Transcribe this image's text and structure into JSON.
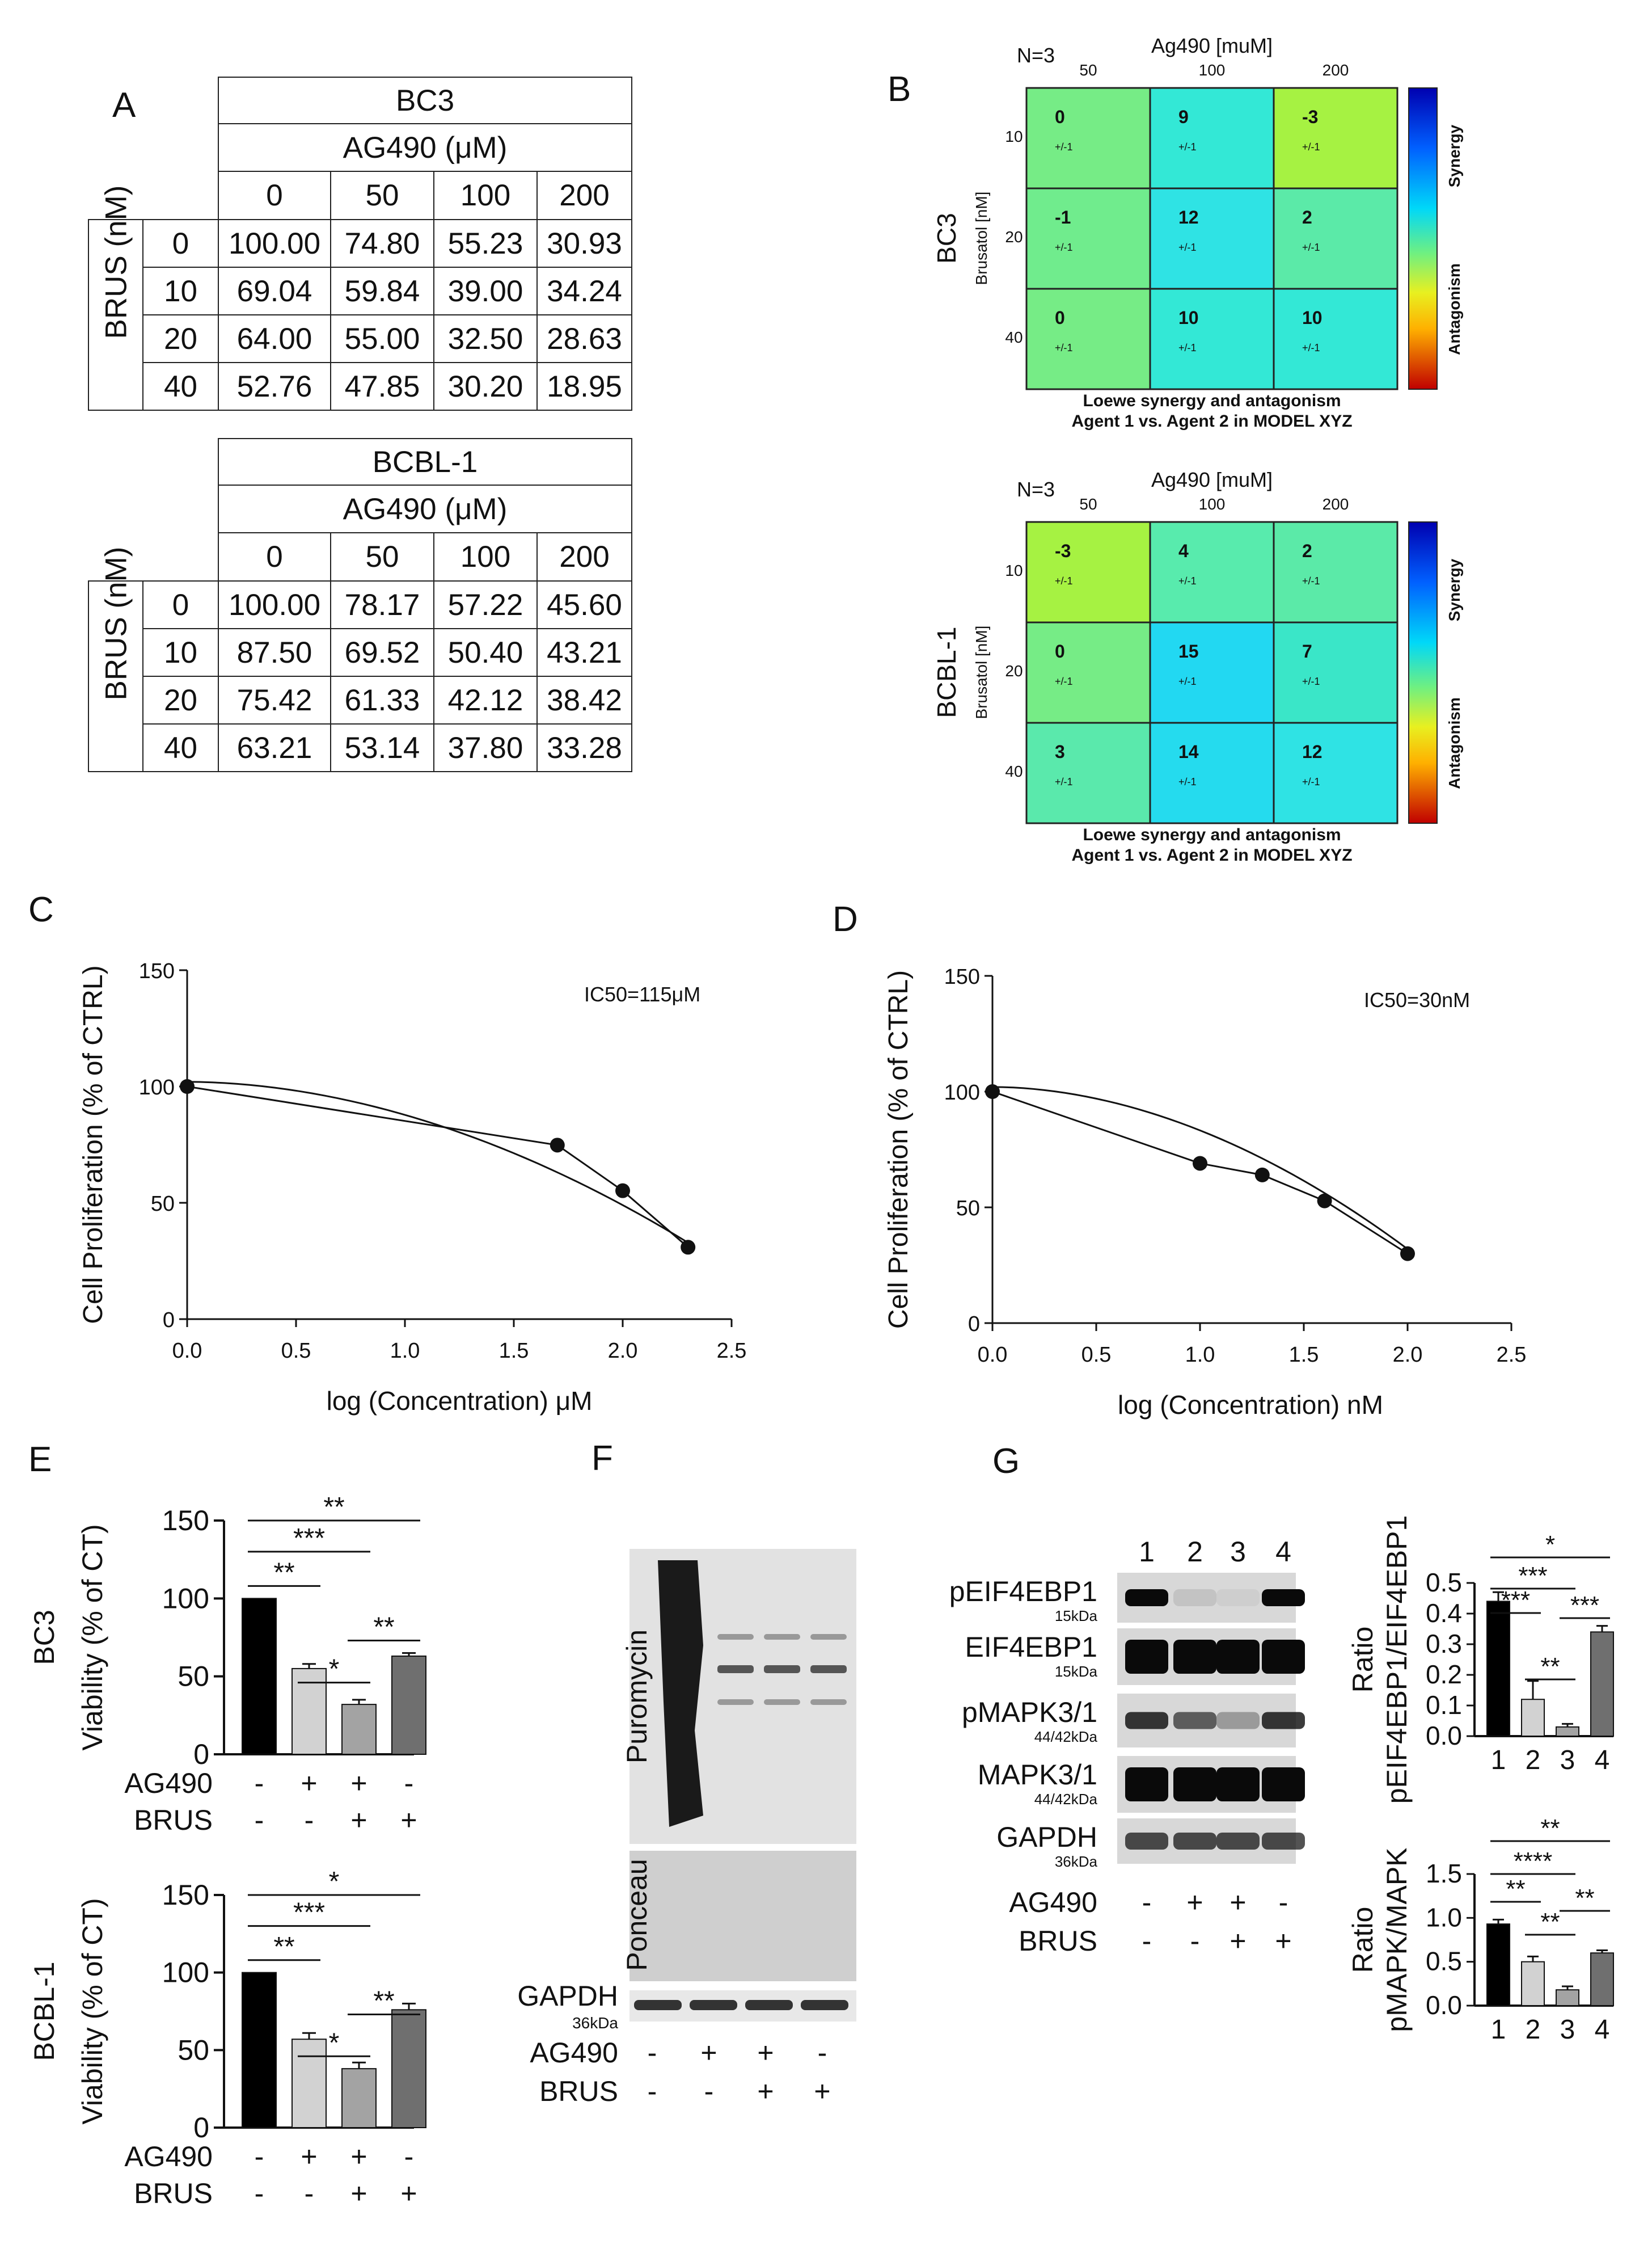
{
  "panels": {
    "A": "A",
    "B": "B",
    "C": "C",
    "D": "D",
    "E": "E",
    "F": "F",
    "G": "G"
  },
  "panel_A": {
    "tables": [
      {
        "cell_line": "BC3",
        "agent_header": "AG490 (μM)",
        "col_values": [
          "0",
          "50",
          "100",
          "200"
        ],
        "row_header": "BRUS (nM)",
        "row_values": [
          "0",
          "10",
          "20",
          "40"
        ],
        "cells": [
          [
            "100.00",
            "74.80",
            "55.23",
            "30.93"
          ],
          [
            "69.04",
            "59.84",
            "39.00",
            "34.24"
          ],
          [
            "64.00",
            "55.00",
            "32.50",
            "28.63"
          ],
          [
            "52.76",
            "47.85",
            "30.20",
            "18.95"
          ]
        ]
      },
      {
        "cell_line": "BCBL-1",
        "agent_header": "AG490 (μM)",
        "col_values": [
          "0",
          "50",
          "100",
          "200"
        ],
        "row_header": "BRUS (nM)",
        "row_values": [
          "0",
          "10",
          "20",
          "40"
        ],
        "cells": [
          [
            "100.00",
            "78.17",
            "57.22",
            "45.60"
          ],
          [
            "87.50",
            "69.52",
            "50.40",
            "43.21"
          ],
          [
            "75.42",
            "61.33",
            "42.12",
            "38.42"
          ],
          [
            "63.21",
            "53.14",
            "37.80",
            "33.28"
          ]
        ]
      }
    ]
  },
  "panel_B": {
    "colorbar_labels": {
      "top": "Synergy",
      "bottom": "Antagonism"
    },
    "heatmaps": [
      {
        "row_title": "BC3",
        "n": "N=3",
        "x_title": "Ag490 [muM]",
        "x_ticks": [
          "50",
          "100",
          "200"
        ],
        "y_title": "Brusatol [nM]",
        "y_ticks": [
          "10",
          "20",
          "40"
        ],
        "values": [
          [
            "0",
            "9",
            "-3"
          ],
          [
            "-1",
            "12",
            "2"
          ],
          [
            "0",
            "10",
            "10"
          ]
        ],
        "sub": "+/-1",
        "colors": [
          [
            "#76ec86",
            "#33e8d6",
            "#a6f242"
          ],
          [
            "#70ec8d",
            "#2fe3e4",
            "#5beaa8"
          ],
          [
            "#76ec86",
            "#33e8d6",
            "#33e8d6"
          ]
        ],
        "footer1": "Loewe synergy and antagonism",
        "footer2": "Agent 1 vs. Agent 2 in MODEL XYZ"
      },
      {
        "row_title": "BCBL-1",
        "n": "N=3",
        "x_title": "Ag490 [muM]",
        "x_ticks": [
          "50",
          "100",
          "200"
        ],
        "y_title": "Brusatol [nM]",
        "y_ticks": [
          "10",
          "20",
          "40"
        ],
        "values": [
          [
            "-3",
            "4",
            "2"
          ],
          [
            "0",
            "15",
            "7"
          ],
          [
            "3",
            "14",
            "12"
          ]
        ],
        "sub": "+/-1",
        "colors": [
          [
            "#a6f242",
            "#58ebad",
            "#5beaa8"
          ],
          [
            "#76ec86",
            "#22d8f2",
            "#3ae6c8"
          ],
          [
            "#5ae9ac",
            "#25dbee",
            "#2fe3e4"
          ]
        ],
        "footer1": "Loewe synergy and antagonism",
        "footer2": "Agent 1 vs. Agent 2 in MODEL XYZ"
      }
    ]
  },
  "chart_data": [
    {
      "type": "line",
      "panel": "C",
      "title": "",
      "ic50": "IC50=115μM",
      "xlabel": "log (Concentration) μM",
      "ylabel": "Cell Proliferation (% of CTRL)",
      "xlim": [
        0,
        2.5
      ],
      "ylim": [
        0,
        150
      ],
      "x_ticks": [
        "0.0",
        "0.5",
        "1.0",
        "1.5",
        "2.0",
        "2.5"
      ],
      "y_ticks": [
        "0",
        "50",
        "100",
        "150"
      ],
      "series": [
        {
          "x": [
            0,
            1.7,
            2.0,
            2.3
          ],
          "y": [
            100,
            74.8,
            55.2,
            30.9
          ]
        }
      ]
    },
    {
      "type": "line",
      "panel": "D",
      "title": "",
      "ic50": "IC50=30nM",
      "xlabel": "log (Concentration) nM",
      "ylabel": "Cell Proliferation (% of CTRL)",
      "xlim": [
        0,
        2.5
      ],
      "ylim": [
        0,
        150
      ],
      "x_ticks": [
        "0.0",
        "0.5",
        "1.0",
        "1.5",
        "2.0",
        "2.5"
      ],
      "y_ticks": [
        "0",
        "50",
        "100",
        "150"
      ],
      "series": [
        {
          "x": [
            0,
            1.0,
            1.3,
            1.6,
            2.0
          ],
          "y": [
            100,
            69,
            64,
            52.8,
            30
          ]
        }
      ]
    },
    {
      "type": "bar",
      "panel": "E",
      "row_title": "BC3",
      "ylabel": "Viability (% of CT)",
      "ylim": [
        0,
        150
      ],
      "y_ticks": [
        "0",
        "50",
        "100",
        "150"
      ],
      "values": [
        100,
        55,
        32,
        63
      ],
      "errors": [
        0,
        3,
        3,
        2
      ],
      "sig": [
        {
          "from": 0,
          "to": 1,
          "label": "**"
        },
        {
          "from": 1,
          "to": 2,
          "label": "*"
        },
        {
          "from": 2,
          "to": 3,
          "label": "**"
        },
        {
          "from": 0,
          "to": 2,
          "label": "***"
        },
        {
          "from": 0,
          "to": 3,
          "label": "**"
        }
      ],
      "treat_rows": [
        {
          "label": "AG490",
          "marks": [
            "-",
            "+",
            "+",
            "-"
          ]
        },
        {
          "label": "BRUS",
          "marks": [
            "-",
            "-",
            "+",
            "+"
          ]
        }
      ]
    },
    {
      "type": "bar",
      "panel": "E",
      "row_title": "BCBL-1",
      "ylabel": "Viability (% of CT)",
      "ylim": [
        0,
        150
      ],
      "y_ticks": [
        "0",
        "50",
        "100",
        "150"
      ],
      "values": [
        100,
        57,
        38,
        76
      ],
      "errors": [
        0,
        4,
        4,
        4
      ],
      "sig": [
        {
          "from": 0,
          "to": 1,
          "label": "**"
        },
        {
          "from": 1,
          "to": 2,
          "label": "*"
        },
        {
          "from": 2,
          "to": 3,
          "label": "**"
        },
        {
          "from": 0,
          "to": 2,
          "label": "***"
        },
        {
          "from": 0,
          "to": 3,
          "label": "*"
        }
      ],
      "treat_rows": [
        {
          "label": "AG490",
          "marks": [
            "-",
            "+",
            "+",
            "-"
          ]
        },
        {
          "label": "BRUS",
          "marks": [
            "-",
            "-",
            "+",
            "+"
          ]
        }
      ]
    },
    {
      "type": "bar",
      "panel": "G",
      "ylabel1": "Ratio",
      "ylabel2": "pEIF4EBP1/EIF4EBP1",
      "ylim": [
        0,
        0.5
      ],
      "y_ticks": [
        "0.0",
        "0.1",
        "0.2",
        "0.3",
        "0.4",
        "0.5"
      ],
      "categories": [
        "1",
        "2",
        "3",
        "4"
      ],
      "values": [
        0.44,
        0.12,
        0.03,
        0.34
      ],
      "errors": [
        0.03,
        0.06,
        0.01,
        0.02
      ],
      "sig": [
        {
          "from": 0,
          "to": 1,
          "label": "***"
        },
        {
          "from": 1,
          "to": 2,
          "label": "**"
        },
        {
          "from": 2,
          "to": 3,
          "label": "***"
        },
        {
          "from": 0,
          "to": 2,
          "label": "***"
        },
        {
          "from": 0,
          "to": 3,
          "label": "*"
        }
      ]
    },
    {
      "type": "bar",
      "panel": "G",
      "ylabel1": "Ratio",
      "ylabel2": "pMAPK/MAPK",
      "ylim": [
        0,
        1.5
      ],
      "y_ticks": [
        "0.0",
        "0.5",
        "1.0",
        "1.5"
      ],
      "categories": [
        "1",
        "2",
        "3",
        "4"
      ],
      "values": [
        0.93,
        0.5,
        0.18,
        0.6
      ],
      "errors": [
        0.05,
        0.06,
        0.04,
        0.03
      ],
      "sig": [
        {
          "from": 0,
          "to": 1,
          "label": "**"
        },
        {
          "from": 1,
          "to": 2,
          "label": "**"
        },
        {
          "from": 2,
          "to": 3,
          "label": "**"
        },
        {
          "from": 0,
          "to": 2,
          "label": "****"
        },
        {
          "from": 0,
          "to": 3,
          "label": "**"
        }
      ]
    }
  ],
  "panel_F": {
    "labels": [
      "Puromycin",
      "Ponceau",
      "GAPDH"
    ],
    "gapdh_kda": "36kDa",
    "treat_rows": [
      {
        "label": "AG490",
        "marks": [
          "-",
          "+",
          "+",
          "-"
        ]
      },
      {
        "label": "BRUS",
        "marks": [
          "-",
          "-",
          "+",
          "+"
        ]
      }
    ]
  },
  "panel_G_blot": {
    "lanes": [
      "1",
      "2",
      "3",
      "4"
    ],
    "bands": [
      {
        "name": "pEIF4EBP1",
        "kda": "15kDa"
      },
      {
        "name": "EIF4EBP1",
        "kda": "15kDa"
      },
      {
        "name": "pMAPK3/1",
        "kda": "44/42kDa"
      },
      {
        "name": "MAPK3/1",
        "kda": "44/42kDa"
      },
      {
        "name": "GAPDH",
        "kda": "36kDa"
      }
    ],
    "treat_rows": [
      {
        "label": "AG490",
        "marks": [
          "-",
          "+",
          "+",
          "-"
        ]
      },
      {
        "label": "BRUS",
        "marks": [
          "-",
          "-",
          "+",
          "+"
        ]
      }
    ]
  },
  "colors": {
    "bar1": "#000000",
    "bar2": "#d2d2d2",
    "bar3": "#a3a3a3",
    "bar4": "#6f6f6f"
  }
}
